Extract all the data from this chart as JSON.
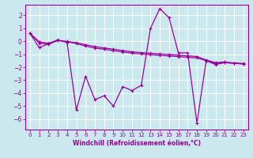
{
  "background_color": "#cce8ef",
  "grid_color": "#ffffff",
  "line_color": "#990099",
  "xlabel": "Windchill (Refroidissement éolien,°C)",
  "xlim": [
    -0.5,
    23.5
  ],
  "ylim": [
    -6.8,
    2.8
  ],
  "yticks": [
    -6,
    -5,
    -4,
    -3,
    -2,
    -1,
    0,
    1,
    2
  ],
  "xticks": [
    0,
    1,
    2,
    3,
    4,
    5,
    6,
    7,
    8,
    9,
    10,
    11,
    12,
    13,
    14,
    15,
    16,
    17,
    18,
    19,
    20,
    21,
    22,
    23
  ],
  "line1_x": [
    0,
    1,
    2,
    3,
    4,
    5,
    6,
    7,
    8,
    9,
    10,
    11,
    12,
    13,
    14,
    15,
    16,
    17,
    18,
    19,
    20,
    21,
    22,
    23
  ],
  "line1_y": [
    0.6,
    -0.5,
    -0.2,
    0.1,
    -0.1,
    -5.3,
    -2.7,
    -4.5,
    -4.2,
    -5.0,
    -3.5,
    -3.8,
    -3.4,
    1.0,
    2.5,
    1.8,
    -0.9,
    -0.9,
    -6.3,
    -1.5,
    -1.8,
    -1.65,
    -1.7,
    -1.75
  ],
  "line2_x": [
    0,
    1,
    2,
    3,
    4,
    5,
    6,
    7,
    8,
    9,
    10,
    11,
    12,
    13,
    14,
    15,
    16,
    17,
    18,
    19,
    20,
    21,
    22,
    23
  ],
  "line2_y": [
    0.6,
    -0.05,
    -0.15,
    0.05,
    -0.02,
    -0.12,
    -0.28,
    -0.42,
    -0.52,
    -0.62,
    -0.72,
    -0.82,
    -0.88,
    -0.93,
    -0.98,
    -1.03,
    -1.08,
    -1.13,
    -1.18,
    -1.45,
    -1.65,
    -1.6,
    -1.68,
    -1.72
  ],
  "line3_x": [
    0,
    1,
    2,
    3,
    4,
    5,
    6,
    7,
    8,
    9,
    10,
    11,
    12,
    13,
    14,
    15,
    16,
    17,
    18,
    19,
    20,
    21,
    22,
    23
  ],
  "line3_y": [
    0.6,
    -0.15,
    -0.25,
    0.05,
    -0.05,
    -0.18,
    -0.38,
    -0.53,
    -0.63,
    -0.73,
    -0.83,
    -0.93,
    -0.99,
    -1.04,
    -1.09,
    -1.14,
    -1.19,
    -1.24,
    -1.29,
    -1.5,
    -1.72,
    -1.65,
    -1.7,
    -1.75
  ],
  "tick_fontsize": 5,
  "xlabel_fontsize": 5.5
}
